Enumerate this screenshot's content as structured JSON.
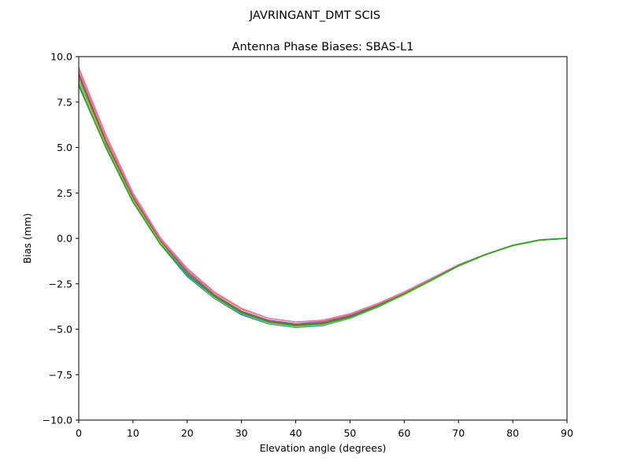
{
  "chart_data": {
    "type": "line",
    "suptitle": "JAVRINGANT_DMT  SCIS",
    "title": "Antenna Phase Biases: SBAS-L1",
    "xlabel": "Elevation angle (degrees)",
    "ylabel": "Bias (mm)",
    "xlim": [
      0,
      90
    ],
    "ylim": [
      -10,
      10
    ],
    "xticks": [
      0,
      10,
      20,
      30,
      40,
      50,
      60,
      70,
      80,
      90
    ],
    "yticks": [
      -10.0,
      -7.5,
      -5.0,
      -2.5,
      0.0,
      2.5,
      5.0,
      7.5,
      10.0
    ],
    "xtick_labels": [
      "0",
      "10",
      "20",
      "30",
      "40",
      "50",
      "60",
      "70",
      "80",
      "90"
    ],
    "ytick_labels": [
      "−10.0",
      "−7.5",
      "−5.0",
      "−2.5",
      "0.0",
      "2.5",
      "5.0",
      "7.5",
      "10.0"
    ],
    "grid": false,
    "x": [
      0,
      5,
      10,
      15,
      20,
      25,
      30,
      35,
      40,
      45,
      50,
      55,
      60,
      65,
      70,
      75,
      80,
      85,
      90
    ],
    "series": [
      {
        "color": "#1f77b4",
        "values": [
          8.5,
          5.0,
          2.0,
          -0.3,
          -2.1,
          -3.3,
          -4.2,
          -4.7,
          -4.9,
          -4.8,
          -4.4,
          -3.8,
          -3.1,
          -2.3,
          -1.5,
          -0.9,
          -0.4,
          -0.1,
          0.0
        ]
      },
      {
        "color": "#ff7f0e",
        "values": [
          9.3,
          5.6,
          2.4,
          0.0,
          -1.7,
          -3.0,
          -3.9,
          -4.4,
          -4.6,
          -4.55,
          -4.2,
          -3.65,
          -3.0,
          -2.25,
          -1.5,
          -0.9,
          -0.4,
          -0.1,
          0.0
        ]
      },
      {
        "color": "#9467bd",
        "values": [
          9.1,
          5.4,
          2.3,
          -0.1,
          -1.8,
          -3.1,
          -4.0,
          -4.5,
          -4.7,
          -4.6,
          -4.25,
          -3.7,
          -3.05,
          -2.3,
          -1.5,
          -0.9,
          -0.4,
          -0.1,
          0.0
        ]
      },
      {
        "color": "#8c564b",
        "values": [
          9.0,
          5.3,
          2.2,
          -0.15,
          -1.9,
          -3.15,
          -4.05,
          -4.55,
          -4.75,
          -4.65,
          -4.3,
          -3.72,
          -3.07,
          -2.3,
          -1.5,
          -0.9,
          -0.4,
          -0.1,
          0.0
        ]
      },
      {
        "color": "#e377c2",
        "values": [
          9.4,
          5.7,
          2.5,
          0.05,
          -1.65,
          -2.95,
          -3.85,
          -4.4,
          -4.6,
          -4.5,
          -4.15,
          -3.6,
          -2.95,
          -2.2,
          -1.45,
          -0.88,
          -0.4,
          -0.1,
          0.0
        ]
      },
      {
        "color": "#7f7f7f",
        "values": [
          8.8,
          5.2,
          2.15,
          -0.2,
          -1.95,
          -3.2,
          -4.1,
          -4.6,
          -4.8,
          -4.7,
          -4.35,
          -3.75,
          -3.08,
          -2.32,
          -1.52,
          -0.9,
          -0.4,
          -0.1,
          0.0
        ]
      },
      {
        "color": "#17becf",
        "values": [
          8.6,
          5.05,
          2.05,
          -0.25,
          -2.05,
          -3.28,
          -4.15,
          -4.68,
          -4.88,
          -4.78,
          -4.4,
          -3.8,
          -3.1,
          -2.33,
          -1.53,
          -0.9,
          -0.4,
          -0.1,
          0.0
        ]
      },
      {
        "color": "#bcbd22",
        "values": [
          8.7,
          5.1,
          2.1,
          -0.22,
          -2.0,
          -3.25,
          -4.12,
          -4.65,
          -4.85,
          -4.75,
          -4.38,
          -3.78,
          -3.09,
          -2.32,
          -1.52,
          -0.9,
          -0.4,
          -0.1,
          0.0
        ]
      },
      {
        "color": "#2ca02c",
        "values": [
          8.4,
          5.0,
          2.0,
          -0.3,
          -2.0,
          -3.2,
          -4.1,
          -4.6,
          -4.8,
          -4.7,
          -4.35,
          -3.75,
          -3.05,
          -2.28,
          -1.5,
          -0.88,
          -0.38,
          -0.08,
          0.0
        ]
      }
    ]
  }
}
